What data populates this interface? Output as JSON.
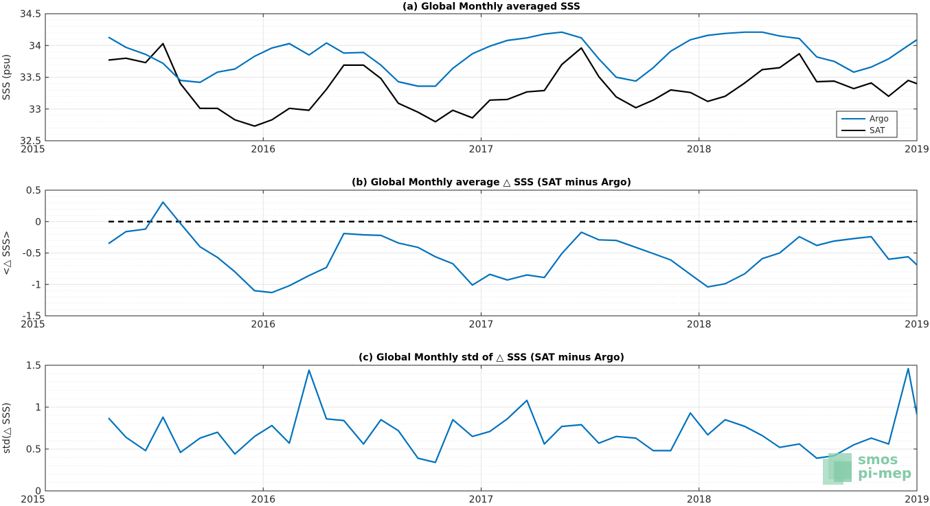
{
  "colors": {
    "argo": "#0072bd",
    "sat": "#000000",
    "grid": "#e6e6e6",
    "axis": "#262626",
    "watermark": "#6fc29a"
  },
  "watermark": {
    "line1": "smos",
    "line2": "pi-mep",
    "icon": "smos-logo-icon"
  },
  "chart_data": [
    {
      "type": "line",
      "title": "(a) Global Monthly averaged SSS",
      "ylabel": "SSS (psu)",
      "xlabel": "",
      "xlim": [
        2015,
        2019
      ],
      "ylim": [
        32.5,
        34.5
      ],
      "xticks": [
        2015,
        2016,
        2017,
        2018,
        2019
      ],
      "xtick_labels": [
        "2015",
        "2016",
        "2017",
        "2018",
        "2019"
      ],
      "yticks": [
        32.5,
        33,
        33.5,
        34,
        34.5
      ],
      "ytick_labels": [
        "32.5",
        "33",
        "33.5",
        "34",
        "34.5"
      ],
      "grid": true,
      "legend": {
        "placement": "bottom-right",
        "entries": [
          "Argo",
          "SAT"
        ]
      },
      "x": [
        2015.29,
        2015.37,
        2015.46,
        2015.54,
        2015.62,
        2015.71,
        2015.79,
        2015.87,
        2015.96,
        2016.04,
        2016.12,
        2016.21,
        2016.29,
        2016.37,
        2016.46,
        2016.54,
        2016.62,
        2016.71,
        2016.79,
        2016.87,
        2016.96,
        2017.04,
        2017.12,
        2017.21,
        2017.29,
        2017.37,
        2017.46,
        2017.54,
        2017.62,
        2017.71,
        2017.79,
        2017.87,
        2017.96,
        2018.04,
        2018.12,
        2018.21,
        2018.29,
        2018.37,
        2018.46,
        2018.54,
        2018.62,
        2018.71,
        2018.79,
        2018.87,
        2018.96,
        2019.0
      ],
      "series": [
        {
          "name": "Argo",
          "values": [
            34.13,
            33.97,
            33.86,
            33.72,
            33.45,
            33.42,
            33.58,
            33.63,
            33.83,
            33.96,
            34.03,
            33.85,
            34.04,
            33.88,
            33.89,
            33.69,
            33.43,
            33.36,
            33.36,
            33.64,
            33.87,
            33.99,
            34.08,
            34.12,
            34.18,
            34.21,
            34.12,
            33.79,
            33.5,
            33.44,
            33.65,
            33.91,
            34.09,
            34.16,
            34.19,
            34.21,
            34.21,
            34.15,
            34.11,
            33.82,
            33.75,
            33.58,
            33.66,
            33.79,
            34.0,
            34.09
          ]
        },
        {
          "name": "SAT",
          "values": [
            33.77,
            33.8,
            33.73,
            34.03,
            33.4,
            33.01,
            33.01,
            32.83,
            32.73,
            32.83,
            33.01,
            32.98,
            33.31,
            33.69,
            33.69,
            33.48,
            33.09,
            32.95,
            32.8,
            32.98,
            32.86,
            33.14,
            33.15,
            33.27,
            33.29,
            33.7,
            33.96,
            33.51,
            33.19,
            33.02,
            33.14,
            33.3,
            33.26,
            33.12,
            33.2,
            33.41,
            33.62,
            33.65,
            33.87,
            33.43,
            33.44,
            33.32,
            33.41,
            33.2,
            33.45,
            33.4
          ]
        }
      ]
    },
    {
      "type": "line",
      "title": "(b) Global Monthly average △ SSS (SAT minus Argo)",
      "ylabel": "<△ SSS>",
      "xlabel": "",
      "xlim": [
        2015,
        2019
      ],
      "ylim": [
        -1.5,
        0.5
      ],
      "xticks": [
        2015,
        2016,
        2017,
        2018,
        2019
      ],
      "xtick_labels": [
        "2015",
        "2016",
        "2017",
        "2018",
        "2019"
      ],
      "yticks": [
        -1.5,
        -1,
        -0.5,
        0,
        0.5
      ],
      "ytick_labels": [
        "-1.5",
        "-1",
        "-0.5",
        "0",
        "0.5"
      ],
      "grid": true,
      "reference_line": {
        "y": 0,
        "x_start": 2015.29,
        "style": "dashed"
      },
      "x": [
        2015.29,
        2015.37,
        2015.46,
        2015.54,
        2015.62,
        2015.71,
        2015.79,
        2015.87,
        2015.96,
        2016.04,
        2016.12,
        2016.21,
        2016.29,
        2016.37,
        2016.46,
        2016.54,
        2016.62,
        2016.71,
        2016.79,
        2016.87,
        2016.96,
        2017.04,
        2017.12,
        2017.21,
        2017.29,
        2017.37,
        2017.46,
        2017.54,
        2017.62,
        2017.71,
        2017.79,
        2017.87,
        2017.96,
        2018.04,
        2018.12,
        2018.21,
        2018.29,
        2018.37,
        2018.46,
        2018.54,
        2018.62,
        2018.71,
        2018.79,
        2018.87,
        2018.96,
        2019.0
      ],
      "series": [
        {
          "name": "",
          "values": [
            -0.35,
            -0.16,
            -0.12,
            0.31,
            -0.03,
            -0.4,
            -0.57,
            -0.8,
            -1.1,
            -1.13,
            -1.02,
            -0.86,
            -0.73,
            -0.19,
            -0.21,
            -0.22,
            -0.34,
            -0.41,
            -0.56,
            -0.67,
            -1.01,
            -0.84,
            -0.93,
            -0.85,
            -0.89,
            -0.51,
            -0.17,
            -0.29,
            -0.3,
            -0.41,
            -0.51,
            -0.61,
            -0.84,
            -1.04,
            -0.99,
            -0.83,
            -0.59,
            -0.5,
            -0.24,
            -0.38,
            -0.31,
            -0.27,
            -0.24,
            -0.6,
            -0.56,
            -0.69
          ]
        }
      ]
    },
    {
      "type": "line",
      "title": "(c) Global Monthly std of △ SSS (SAT minus Argo)",
      "ylabel": "std(△ SSS)",
      "xlabel": "",
      "xlim": [
        2015,
        2019
      ],
      "ylim": [
        0,
        1.5
      ],
      "xticks": [
        2015,
        2016,
        2017,
        2018,
        2019
      ],
      "xtick_labels": [
        "2015",
        "2016",
        "2017",
        "2018",
        "2019"
      ],
      "yticks": [
        0,
        0.5,
        1,
        1.5
      ],
      "ytick_labels": [
        "0",
        "0.5",
        "1",
        "1.5"
      ],
      "grid": true,
      "x": [
        2015.29,
        2015.37,
        2015.46,
        2015.54,
        2015.62,
        2015.71,
        2015.79,
        2015.87,
        2015.96,
        2016.04,
        2016.12,
        2016.21,
        2016.29,
        2016.37,
        2016.46,
        2016.54,
        2016.62,
        2016.71,
        2016.79,
        2016.87,
        2016.96,
        2017.04,
        2017.12,
        2017.21,
        2017.29,
        2017.37,
        2017.46,
        2017.54,
        2017.62,
        2017.71,
        2017.79,
        2017.87,
        2017.96,
        2018.04,
        2018.12,
        2018.21,
        2018.29,
        2018.37,
        2018.46,
        2018.54,
        2018.62,
        2018.71,
        2018.79,
        2018.87,
        2018.96,
        2019.0
      ],
      "series": [
        {
          "name": "",
          "values": [
            0.87,
            0.64,
            0.48,
            0.88,
            0.46,
            0.63,
            0.7,
            0.44,
            0.65,
            0.78,
            0.57,
            1.44,
            0.86,
            0.84,
            0.56,
            0.85,
            0.72,
            0.39,
            0.34,
            0.85,
            0.65,
            0.71,
            0.86,
            1.08,
            0.56,
            0.77,
            0.79,
            0.57,
            0.65,
            0.63,
            0.48,
            0.48,
            0.93,
            0.67,
            0.85,
            0.77,
            0.66,
            0.52,
            0.56,
            0.39,
            0.42,
            0.55,
            0.63,
            0.56,
            1.46,
            0.91
          ]
        }
      ]
    }
  ]
}
